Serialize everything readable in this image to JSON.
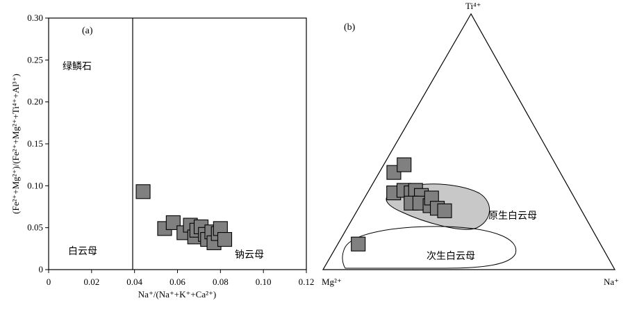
{
  "colors": {
    "marker_fill": "#808080",
    "marker_stroke": "#000000",
    "field_fill": "#c8c8c8"
  },
  "chart_data": [
    {
      "type": "scatter",
      "panel_label": "(a)",
      "xlabel": "Na⁺/(Na⁺+K⁺+Ca²⁺)",
      "ylabel": "(Fe²⁺+Mg²⁺)/(Fe²⁺+Mg²⁺+Ti⁴⁺+Al³⁺)",
      "xlim": [
        0,
        0.12
      ],
      "ylim": [
        0,
        0.3
      ],
      "xticks": [
        "0",
        "0.02",
        "0.04",
        "0.06",
        "0.08",
        "0.10",
        "0.12"
      ],
      "yticks": [
        "0",
        "0.05",
        "0.10",
        "0.15",
        "0.20",
        "0.25",
        "0.30"
      ],
      "annotations": [
        "绿鳞石",
        "白云母",
        "钠云母"
      ],
      "points": [
        {
          "x": 0.044,
          "y": 0.093
        },
        {
          "x": 0.054,
          "y": 0.049
        },
        {
          "x": 0.058,
          "y": 0.056
        },
        {
          "x": 0.063,
          "y": 0.044
        },
        {
          "x": 0.066,
          "y": 0.053
        },
        {
          "x": 0.068,
          "y": 0.039
        },
        {
          "x": 0.069,
          "y": 0.047
        },
        {
          "x": 0.071,
          "y": 0.051
        },
        {
          "x": 0.073,
          "y": 0.042
        },
        {
          "x": 0.074,
          "y": 0.036
        },
        {
          "x": 0.076,
          "y": 0.045
        },
        {
          "x": 0.077,
          "y": 0.032
        },
        {
          "x": 0.079,
          "y": 0.043
        },
        {
          "x": 0.08,
          "y": 0.049
        },
        {
          "x": 0.082,
          "y": 0.036
        }
      ]
    },
    {
      "type": "ternary",
      "panel_label": "(b)",
      "vertices": {
        "top": "Ti⁴⁺",
        "left": "Mg²⁺",
        "right": "Na⁺"
      },
      "annotations": [
        "原生白云母",
        "次生白云母"
      ],
      "points": [
        {
          "ti": 0.38,
          "mg": 0.57,
          "na": 0.05
        },
        {
          "ti": 0.41,
          "mg": 0.52,
          "na": 0.07
        },
        {
          "ti": 0.3,
          "mg": 0.61,
          "na": 0.09
        },
        {
          "ti": 0.31,
          "mg": 0.57,
          "na": 0.12
        },
        {
          "ti": 0.3,
          "mg": 0.55,
          "na": 0.15
        },
        {
          "ti": 0.31,
          "mg": 0.53,
          "na": 0.16
        },
        {
          "ti": 0.29,
          "mg": 0.52,
          "na": 0.19
        },
        {
          "ti": 0.26,
          "mg": 0.57,
          "na": 0.17
        },
        {
          "ti": 0.26,
          "mg": 0.54,
          "na": 0.2
        },
        {
          "ti": 0.25,
          "mg": 0.51,
          "na": 0.24
        },
        {
          "ti": 0.28,
          "mg": 0.49,
          "na": 0.23
        },
        {
          "ti": 0.24,
          "mg": 0.49,
          "na": 0.27
        },
        {
          "ti": 0.23,
          "mg": 0.47,
          "na": 0.3
        },
        {
          "ti": 0.1,
          "mg": 0.83,
          "na": 0.07
        }
      ]
    }
  ]
}
